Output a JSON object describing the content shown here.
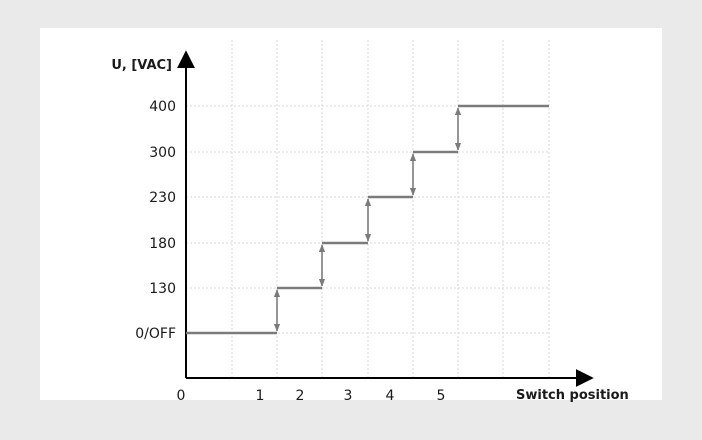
{
  "chart_data": {
    "type": "line",
    "title": "",
    "ylabel": "U, [VAC]",
    "xlabel": "Switch position",
    "y_levels": [
      "0/OFF",
      "130",
      "180",
      "230",
      "300",
      "400"
    ],
    "x_ticks": [
      "0",
      "1",
      "2",
      "3",
      "4",
      "5"
    ],
    "steps": [
      {
        "position": "0/OFF",
        "level": "0/OFF"
      },
      {
        "position": "1",
        "level": "130"
      },
      {
        "position": "2",
        "level": "180"
      },
      {
        "position": "3",
        "level": "230"
      },
      {
        "position": "4",
        "level": "300"
      },
      {
        "position": "5",
        "level": "400"
      }
    ],
    "grid": true,
    "legend": "none"
  },
  "colors": {
    "background": "#eaeaea",
    "plot_area": "#ffffff",
    "line": "#7b7b7b",
    "axis": "#000000",
    "grid": "#d9d9d9"
  }
}
